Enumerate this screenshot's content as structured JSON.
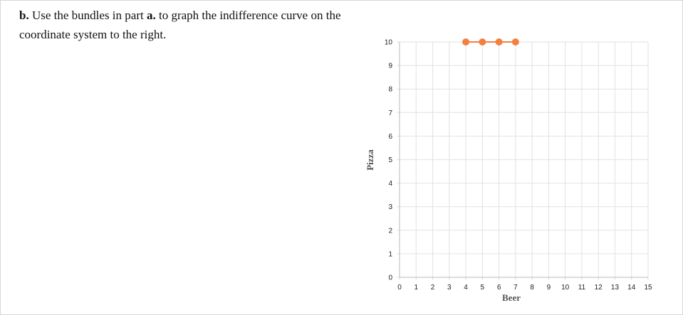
{
  "question": {
    "part_label": "b.",
    "text_1": " Use the bundles in part ",
    "part_ref": "a.",
    "text_2": " to graph the indifference curve on the coordinate system to the right."
  },
  "colors": {
    "series": "#f47f3f",
    "grid": "#e2e2e2",
    "axis": "#b8b8b8"
  },
  "chart_data": {
    "type": "line",
    "title": "",
    "xlabel": "Beer",
    "ylabel": "Pizza",
    "xlim": [
      0,
      15
    ],
    "ylim": [
      0,
      10
    ],
    "x_ticks": [
      0,
      1,
      2,
      3,
      4,
      5,
      6,
      7,
      8,
      9,
      10,
      11,
      12,
      13,
      14,
      15
    ],
    "y_ticks": [
      0,
      1,
      2,
      3,
      4,
      5,
      6,
      7,
      8,
      9,
      10
    ],
    "grid": true,
    "series": [
      {
        "x": [
          4,
          5,
          6,
          7
        ],
        "y": [
          10,
          10,
          10,
          10
        ]
      }
    ]
  }
}
